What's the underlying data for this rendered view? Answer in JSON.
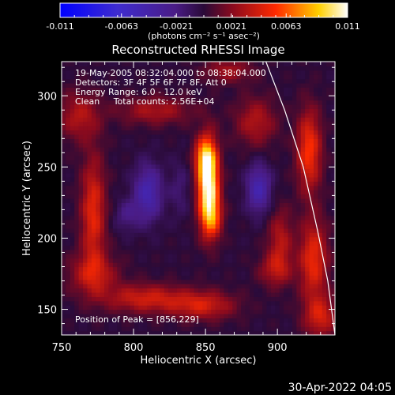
{
  "chart_data": {
    "type": "heatmap",
    "title": "Reconstructed RHESSI Image",
    "xlabel": "Heliocentric X (arcsec)",
    "ylabel": "Heliocentric Y (arcsec)",
    "xlim": [
      750,
      940
    ],
    "ylim": [
      132,
      324
    ],
    "xticks": [
      750,
      800,
      850,
      900
    ],
    "yticks": [
      150,
      200,
      250,
      300
    ],
    "colorbar": {
      "ticks": [
        "-0.011",
        "-0.0063",
        "-0.0021",
        "0.0021",
        "0.0063",
        "0.011"
      ],
      "tick_values": [
        -0.011,
        -0.0063,
        -0.0021,
        0.0021,
        0.0063,
        0.011
      ],
      "range": [
        -0.011,
        0.011
      ],
      "unit_label": "(photons cm⁻² s⁻¹ asec⁻²)",
      "colormap": "RHESSI color table: blue → violet → red → orange → yellow → white"
    },
    "annotations": [
      "19-May-2005 08:32:04.000 to 08:38:04.000",
      "Detectors: 3F 4F 5F 6F 7F 8F, Att 0",
      "Energy Range: 6.0 - 12.0 keV",
      "Clean     Total counts: 2.56E+04"
    ],
    "peak_label": "Position of Peak = [856,229]",
    "peak": {
      "x": 856,
      "y": 229
    },
    "limb_arc": [
      [
        892,
        324
      ],
      [
        905,
        290
      ],
      [
        918,
        250
      ],
      [
        928,
        205
      ],
      [
        935,
        170
      ],
      [
        940,
        132
      ]
    ],
    "sources": [
      {
        "x": 852,
        "y": 238,
        "amp": 0.0118,
        "sx": 5,
        "sy": 20
      },
      {
        "x": 849,
        "y": 258,
        "amp": 0.0045,
        "sx": 5,
        "sy": 9
      },
      {
        "x": 855,
        "y": 214,
        "amp": 0.004,
        "sx": 5,
        "sy": 10
      },
      {
        "x": 772,
        "y": 218,
        "amp": 0.0048,
        "sx": 6,
        "sy": 28
      },
      {
        "x": 762,
        "y": 286,
        "amp": 0.0032,
        "sx": 10,
        "sy": 12
      },
      {
        "x": 772,
        "y": 175,
        "amp": 0.0035,
        "sx": 12,
        "sy": 10
      },
      {
        "x": 808,
        "y": 158,
        "amp": 0.004,
        "sx": 20,
        "sy": 7
      },
      {
        "x": 848,
        "y": 153,
        "amp": 0.004,
        "sx": 16,
        "sy": 7
      },
      {
        "x": 815,
        "y": 290,
        "amp": 0.003,
        "sx": 18,
        "sy": 7
      },
      {
        "x": 885,
        "y": 282,
        "amp": 0.0032,
        "sx": 10,
        "sy": 12
      },
      {
        "x": 902,
        "y": 198,
        "amp": 0.0033,
        "sx": 6,
        "sy": 16
      },
      {
        "x": 898,
        "y": 178,
        "amp": 0.0028,
        "sx": 8,
        "sy": 8
      },
      {
        "x": 922,
        "y": 262,
        "amp": 0.0055,
        "sx": 6,
        "sy": 20
      },
      {
        "x": 925,
        "y": 185,
        "amp": 0.005,
        "sx": 7,
        "sy": 20
      },
      {
        "x": 930,
        "y": 145,
        "amp": 0.004,
        "sx": 8,
        "sy": 10
      },
      {
        "x": 866,
        "y": 318,
        "amp": 0.0028,
        "sx": 12,
        "sy": 6
      },
      {
        "x": 810,
        "y": 232,
        "amp": -0.0045,
        "sx": 7,
        "sy": 14
      },
      {
        "x": 887,
        "y": 235,
        "amp": -0.0045,
        "sx": 6,
        "sy": 12
      },
      {
        "x": 795,
        "y": 216,
        "amp": -0.002,
        "sx": 6,
        "sy": 8
      },
      {
        "x": 832,
        "y": 235,
        "amp": -0.0015,
        "sx": 5,
        "sy": 14
      }
    ]
  },
  "timestamp": "30-Apr-2022 04:05"
}
